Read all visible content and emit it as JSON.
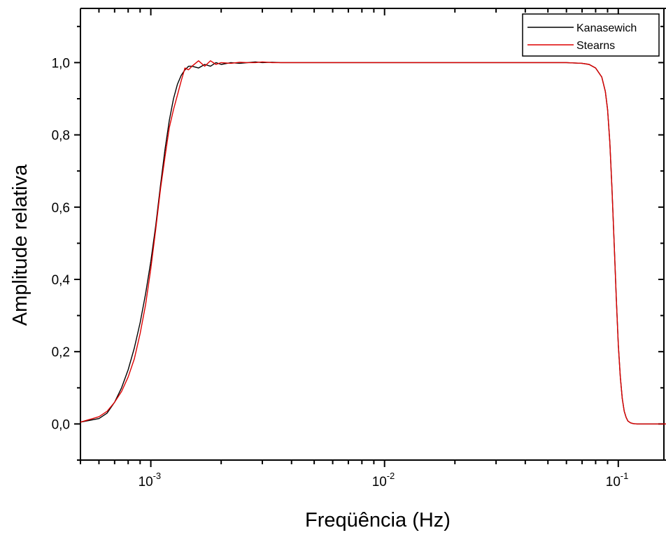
{
  "chart_data": {
    "type": "line",
    "title": "",
    "xlabel": "Freqüência (Hz)",
    "ylabel": "Amplitude relativa",
    "xscale": "log",
    "xlim": [
      0.0005,
      0.16
    ],
    "ylim": [
      -0.1,
      1.15
    ],
    "y_ticks": [
      {
        "value": 0.0,
        "label": "0,0"
      },
      {
        "value": 0.2,
        "label": "0,2"
      },
      {
        "value": 0.4,
        "label": "0,4"
      },
      {
        "value": 0.6,
        "label": "0,6"
      },
      {
        "value": 0.8,
        "label": "0,8"
      },
      {
        "value": 1.0,
        "label": "1,0"
      }
    ],
    "x_ticks": [
      {
        "value": 0.001,
        "base": "10",
        "exp": "-3"
      },
      {
        "value": 0.01,
        "base": "10",
        "exp": "-2"
      },
      {
        "value": 0.1,
        "base": "10",
        "exp": "-1"
      }
    ],
    "legend": {
      "position": "top-right"
    },
    "grid": false,
    "series": [
      {
        "name": "Kanasewich",
        "color": "#000000",
        "x": [
          0.0005,
          0.0006,
          0.00065,
          0.0007,
          0.00075,
          0.0008,
          0.00085,
          0.0009,
          0.00095,
          0.001,
          0.00105,
          0.0011,
          0.00115,
          0.0012,
          0.00125,
          0.0013,
          0.00135,
          0.0014,
          0.00145,
          0.0015,
          0.0016,
          0.0017,
          0.0018,
          0.0019,
          0.002,
          0.0022,
          0.0024,
          0.0026,
          0.0028,
          0.003,
          0.0033,
          0.0036,
          0.004,
          0.005,
          0.006,
          0.008,
          0.01,
          0.02,
          0.03,
          0.04,
          0.05,
          0.06,
          0.07,
          0.075,
          0.08,
          0.085,
          0.088,
          0.09,
          0.092,
          0.094,
          0.096,
          0.098,
          0.1,
          0.102,
          0.104,
          0.106,
          0.108,
          0.11,
          0.113,
          0.116,
          0.12,
          0.125,
          0.13,
          0.14,
          0.16
        ],
        "y": [
          0.005,
          0.015,
          0.03,
          0.06,
          0.1,
          0.15,
          0.21,
          0.28,
          0.36,
          0.45,
          0.55,
          0.66,
          0.76,
          0.84,
          0.9,
          0.94,
          0.965,
          0.98,
          0.99,
          0.99,
          0.985,
          0.995,
          0.99,
          1.0,
          0.995,
          1.0,
          0.998,
          1.0,
          1.002,
          1.0,
          1.001,
          1.0,
          1.0,
          1.0,
          1.0,
          1.0,
          1.0,
          1.0,
          1.0,
          1.0,
          1.0,
          1.0,
          0.998,
          0.995,
          0.985,
          0.96,
          0.92,
          0.87,
          0.78,
          0.65,
          0.5,
          0.35,
          0.22,
          0.13,
          0.07,
          0.035,
          0.018,
          0.008,
          0.003,
          0.001,
          0.0,
          0.0,
          0.0,
          0.0,
          0.0
        ]
      },
      {
        "name": "Stearns",
        "color": "#dd0000",
        "x": [
          0.0005,
          0.0006,
          0.00065,
          0.0007,
          0.00075,
          0.0008,
          0.00085,
          0.0009,
          0.00095,
          0.001,
          0.00105,
          0.0011,
          0.00115,
          0.0012,
          0.00125,
          0.0013,
          0.00135,
          0.0014,
          0.00145,
          0.0015,
          0.0016,
          0.0017,
          0.0018,
          0.0019,
          0.002,
          0.0022,
          0.0024,
          0.0026,
          0.0028,
          0.003,
          0.0033,
          0.0036,
          0.004,
          0.005,
          0.006,
          0.008,
          0.01,
          0.02,
          0.03,
          0.04,
          0.05,
          0.06,
          0.07,
          0.075,
          0.08,
          0.085,
          0.088,
          0.09,
          0.092,
          0.094,
          0.096,
          0.098,
          0.1,
          0.102,
          0.104,
          0.106,
          0.108,
          0.11,
          0.113,
          0.116,
          0.12,
          0.125,
          0.13,
          0.14,
          0.16
        ],
        "y": [
          0.005,
          0.02,
          0.035,
          0.06,
          0.09,
          0.13,
          0.18,
          0.25,
          0.33,
          0.43,
          0.54,
          0.65,
          0.74,
          0.82,
          0.87,
          0.91,
          0.95,
          0.985,
          0.98,
          0.99,
          1.005,
          0.99,
          1.005,
          0.995,
          1.0,
          0.998,
          1.001,
          1.0,
          1.0,
          1.002,
          1.0,
          1.0,
          1.0,
          1.0,
          1.0,
          1.0,
          1.0,
          1.0,
          1.0,
          1.0,
          1.0,
          1.0,
          0.998,
          0.995,
          0.985,
          0.96,
          0.92,
          0.87,
          0.78,
          0.65,
          0.5,
          0.35,
          0.22,
          0.13,
          0.07,
          0.035,
          0.018,
          0.008,
          0.003,
          0.001,
          0.0,
          0.0,
          0.0,
          0.0,
          0.0
        ]
      }
    ]
  }
}
